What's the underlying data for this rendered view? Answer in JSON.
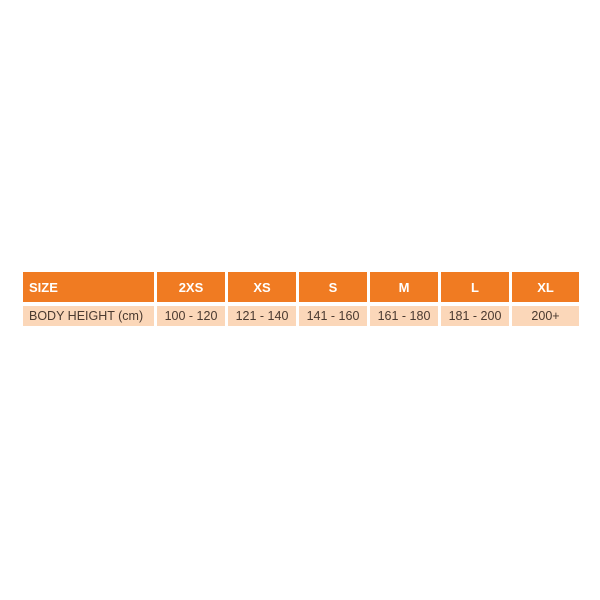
{
  "table": {
    "header": [
      "SIZE",
      "2XS",
      "XS",
      "S",
      "M",
      "L",
      "XL"
    ],
    "rows": [
      [
        "BODY HEIGHT (cm)",
        "100 - 120",
        "121 - 140",
        "141 - 160",
        "161 - 180",
        "181 - 200",
        "200+"
      ]
    ]
  },
  "colors": {
    "header_bg": "#f07b22",
    "body_bg": "#fbd7b9",
    "header_text": "#ffffff",
    "body_text": "#4a3a30"
  }
}
